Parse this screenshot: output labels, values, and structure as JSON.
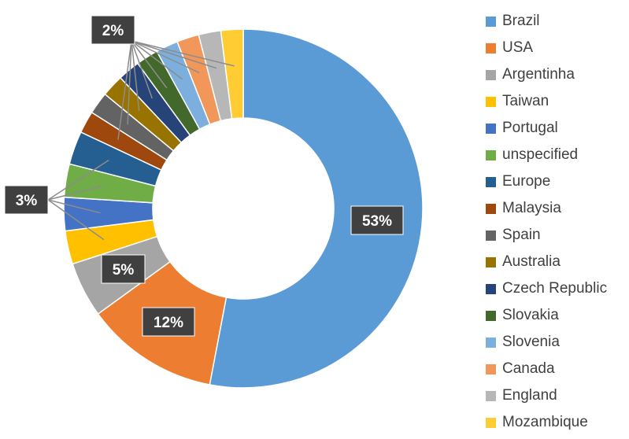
{
  "chart_data": {
    "type": "pie",
    "categories": [
      "Brazil",
      "USA",
      "Argentinha",
      "Taiwan",
      "Portugal",
      "unspecified",
      "Europe",
      "Malaysia",
      "Spain",
      "Australia",
      "Czech Republic",
      "Slovakia",
      "Slovenia",
      "Canada",
      "England",
      "Mozambique"
    ],
    "values": [
      53,
      12,
      5,
      3,
      3,
      3,
      3,
      2,
      2,
      2,
      2,
      2,
      2,
      2,
      2,
      2
    ],
    "colors": [
      "#5B9BD5",
      "#ED7D31",
      "#A5A5A5",
      "#FFC000",
      "#4472C4",
      "#70AD47",
      "#255E91",
      "#9E480E",
      "#636363",
      "#997300",
      "#264478",
      "#43682B",
      "#7CAFDD",
      "#F1975A",
      "#B7B7B7",
      "#FFCD33"
    ],
    "data_labels": [
      {
        "text": "53%",
        "slice": 0
      },
      {
        "text": "12%",
        "slice": 1
      },
      {
        "text": "5%",
        "slice": 2
      },
      {
        "text": "3%",
        "slices": [
          3,
          4,
          5,
          6
        ]
      },
      {
        "text": "2%",
        "slices": [
          7,
          8,
          9,
          10,
          11,
          12,
          13,
          14,
          15
        ]
      }
    ],
    "legend_position": "right",
    "hole": "donut"
  }
}
